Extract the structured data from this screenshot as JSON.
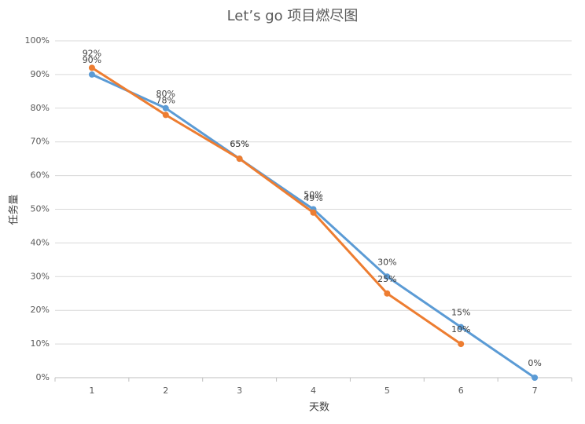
{
  "chart_data": {
    "type": "line",
    "title": "Let’s go 项目燃尽图",
    "x_label": "天数",
    "y_label": "任务量",
    "categories": [
      "1",
      "2",
      "3",
      "4",
      "5",
      "6",
      "7"
    ],
    "series": [
      {
        "color": "#5b9bd5",
        "values": [
          90,
          80,
          65,
          50,
          30,
          15,
          0
        ],
        "value_labels": [
          "90%",
          "80%",
          "65%",
          "50%",
          "30%",
          "15%",
          "0%"
        ]
      },
      {
        "color": "#ed7d31",
        "values": [
          92,
          78,
          65,
          49,
          25,
          10,
          null
        ],
        "value_labels": [
          "92%",
          "78%",
          "65%",
          "49%",
          "25%",
          "10%",
          null
        ]
      }
    ],
    "ylim": [
      0,
      100
    ],
    "yticks": [
      {
        "value": 0,
        "label": "0%"
      },
      {
        "value": 10,
        "label": "10%"
      },
      {
        "value": 20,
        "label": "20%"
      },
      {
        "value": 30,
        "label": "30%"
      },
      {
        "value": 40,
        "label": "40%"
      },
      {
        "value": 50,
        "label": "50%"
      },
      {
        "value": 60,
        "label": "60%"
      },
      {
        "value": 70,
        "label": "70%"
      },
      {
        "value": 80,
        "label": "80%"
      },
      {
        "value": 90,
        "label": "90%"
      },
      {
        "value": 100,
        "label": "100%"
      }
    ],
    "grid": true
  }
}
